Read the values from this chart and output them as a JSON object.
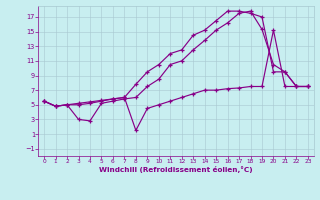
{
  "xlabel": "Windchill (Refroidissement éolien,°C)",
  "bg_color": "#c8eef0",
  "grid_color": "#a8c8d0",
  "line_color": "#880088",
  "xlim": [
    -0.5,
    23.5
  ],
  "ylim": [
    -2.0,
    18.5
  ],
  "xticks": [
    0,
    1,
    2,
    3,
    4,
    5,
    6,
    7,
    8,
    9,
    10,
    11,
    12,
    13,
    14,
    15,
    16,
    17,
    18,
    19,
    20,
    21,
    22,
    23
  ],
  "yticks": [
    -1,
    1,
    3,
    5,
    7,
    9,
    11,
    13,
    15,
    17
  ],
  "line1_x": [
    0,
    1,
    2,
    3,
    4,
    5,
    6,
    7,
    8,
    9,
    10,
    11,
    12,
    13,
    14,
    15,
    16,
    17,
    18,
    19,
    20,
    21,
    22,
    23
  ],
  "line1_y": [
    5.5,
    4.8,
    5.0,
    5.0,
    5.2,
    5.5,
    5.8,
    6.0,
    7.8,
    9.5,
    10.5,
    12.0,
    12.5,
    14.5,
    15.2,
    16.5,
    17.8,
    17.8,
    17.5,
    17.0,
    9.5,
    9.5,
    7.5,
    7.5
  ],
  "line2_x": [
    0,
    1,
    2,
    3,
    4,
    5,
    6,
    7,
    8,
    9,
    10,
    11,
    12,
    13,
    14,
    15,
    16,
    17,
    18,
    19,
    20,
    21,
    22,
    23
  ],
  "line2_y": [
    5.5,
    4.8,
    5.0,
    3.0,
    2.8,
    5.2,
    5.5,
    5.8,
    6.0,
    7.5,
    8.5,
    10.5,
    11.0,
    12.5,
    13.8,
    15.2,
    16.2,
    17.5,
    17.8,
    15.3,
    10.5,
    9.5,
    7.5,
    7.5
  ],
  "line3_x": [
    0,
    1,
    2,
    3,
    4,
    5,
    6,
    7,
    8,
    9,
    10,
    11,
    12,
    13,
    14,
    15,
    16,
    17,
    18,
    19,
    20,
    21,
    22,
    23
  ],
  "line3_y": [
    5.5,
    4.8,
    5.0,
    5.2,
    5.4,
    5.6,
    5.8,
    6.0,
    1.5,
    4.5,
    5.0,
    5.5,
    6.0,
    6.5,
    7.0,
    7.0,
    7.2,
    7.3,
    7.5,
    7.5,
    15.2,
    7.5,
    7.5,
    7.5
  ]
}
